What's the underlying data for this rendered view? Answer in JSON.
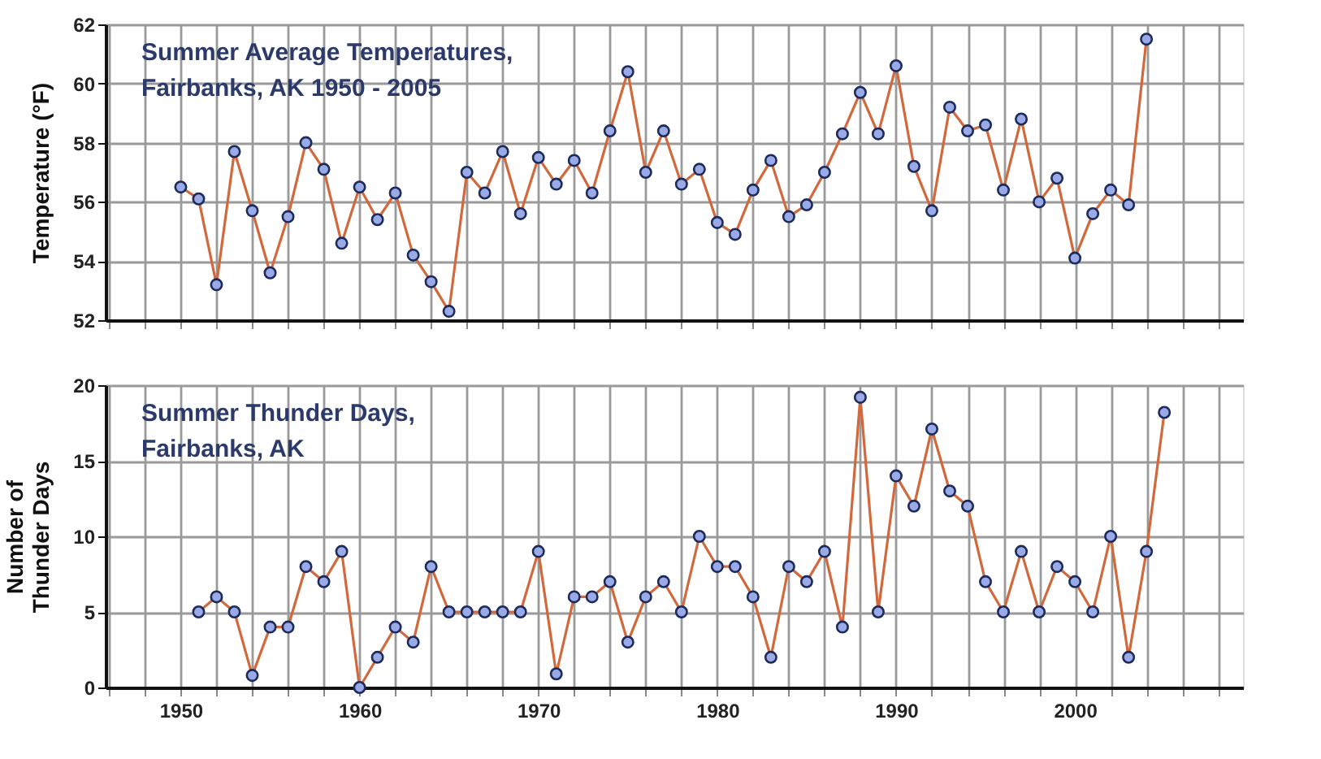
{
  "chart_data": [
    {
      "type": "line",
      "title": "Summer Average Temperatures,\nFairbanks, AK 1950 - 2005",
      "ylabel": "Temperature (°F)",
      "x": [
        1950,
        1951,
        1952,
        1953,
        1954,
        1955,
        1956,
        1957,
        1958,
        1959,
        1960,
        1961,
        1962,
        1963,
        1964,
        1965,
        1966,
        1967,
        1968,
        1969,
        1970,
        1971,
        1972,
        1973,
        1974,
        1975,
        1976,
        1977,
        1978,
        1979,
        1980,
        1981,
        1982,
        1983,
        1984,
        1985,
        1986,
        1987,
        1988,
        1989,
        1990,
        1991,
        1992,
        1993,
        1994,
        1995,
        1996,
        1997,
        1998,
        1999,
        2000,
        2001,
        2002,
        2003,
        2004
      ],
      "series": [
        {
          "color": "#d2693c",
          "values": [
            56.5,
            56.1,
            53.2,
            57.7,
            55.7,
            53.6,
            55.5,
            58.0,
            57.1,
            54.6,
            56.5,
            55.4,
            56.3,
            54.2,
            53.3,
            52.3,
            57.0,
            56.3,
            57.7,
            55.6,
            57.5,
            56.6,
            57.4,
            56.3,
            58.4,
            60.4,
            57.0,
            58.4,
            56.6,
            57.1,
            55.3,
            54.9,
            56.4,
            57.4,
            55.5,
            55.9,
            57.0,
            58.3,
            59.7,
            58.3,
            60.6,
            57.2,
            55.7,
            59.2,
            58.4,
            58.6,
            56.4,
            58.8,
            56.0,
            56.8,
            54.1,
            55.6,
            56.4,
            55.9,
            61.5
          ]
        }
      ],
      "xlim": [
        1945.8,
        2009.4
      ],
      "xticks": [
        {
          "value": 1946,
          "label": null
        },
        {
          "value": 1948,
          "label": null
        },
        {
          "value": 1950,
          "label": null
        },
        {
          "value": 1952,
          "label": null
        },
        {
          "value": 1954,
          "label": null
        },
        {
          "value": 1956,
          "label": null
        },
        {
          "value": 1958,
          "label": null
        },
        {
          "value": 1960,
          "label": null
        },
        {
          "value": 1962,
          "label": null
        },
        {
          "value": 1964,
          "label": null
        },
        {
          "value": 1966,
          "label": null
        },
        {
          "value": 1968,
          "label": null
        },
        {
          "value": 1970,
          "label": null
        },
        {
          "value": 1972,
          "label": null
        },
        {
          "value": 1974,
          "label": null
        },
        {
          "value": 1976,
          "label": null
        },
        {
          "value": 1978,
          "label": null
        },
        {
          "value": 1980,
          "label": null
        },
        {
          "value": 1982,
          "label": null
        },
        {
          "value": 1984,
          "label": null
        },
        {
          "value": 1986,
          "label": null
        },
        {
          "value": 1988,
          "label": null
        },
        {
          "value": 1990,
          "label": null
        },
        {
          "value": 1992,
          "label": null
        },
        {
          "value": 1994,
          "label": null
        },
        {
          "value": 1996,
          "label": null
        },
        {
          "value": 1998,
          "label": null
        },
        {
          "value": 2000,
          "label": null
        },
        {
          "value": 2002,
          "label": null
        },
        {
          "value": 2004,
          "label": null
        },
        {
          "value": 2006,
          "label": null
        },
        {
          "value": 2008,
          "label": null
        }
      ],
      "ylim": [
        52,
        62
      ],
      "yticks": [
        52,
        54,
        56,
        58,
        60,
        62
      ],
      "grid": true,
      "marker": "circle",
      "line_style": "solid",
      "tick_labels": "y"
    },
    {
      "type": "line",
      "title": "Summer Thunder Days,\nFairbanks, AK",
      "ylabel": "Number of\nThunder Days",
      "x": [
        1951,
        1952,
        1953,
        1954,
        1955,
        1956,
        1957,
        1958,
        1959,
        1960,
        1961,
        1962,
        1963,
        1964,
        1965,
        1966,
        1967,
        1968,
        1969,
        1970,
        1971,
        1972,
        1973,
        1974,
        1975,
        1976,
        1977,
        1978,
        1979,
        1980,
        1981,
        1982,
        1983,
        1984,
        1985,
        1986,
        1987,
        1988,
        1989,
        1990,
        1991,
        1992,
        1993,
        1994,
        1995,
        1996,
        1997,
        1998,
        1999,
        2000,
        2001,
        2002,
        2003,
        2004,
        2005
      ],
      "series": [
        {
          "color": "#d2693c",
          "values": [
            5,
            6,
            5,
            0.8,
            4,
            4,
            8,
            7,
            9,
            0,
            2,
            4,
            3,
            8,
            5,
            5,
            5,
            5,
            5,
            9,
            0.9,
            6,
            6,
            7,
            3,
            6,
            7,
            5,
            10,
            8,
            8,
            6,
            2,
            8,
            7,
            9,
            4,
            19.2,
            5,
            14,
            12,
            17.1,
            13,
            12,
            7,
            5,
            9,
            5,
            8,
            7,
            5,
            10,
            2,
            9,
            18.2
          ]
        }
      ],
      "xlim": [
        1945.8,
        2009.4
      ],
      "xticks": [
        {
          "value": 1946,
          "label": null
        },
        {
          "value": 1948,
          "label": null
        },
        1950,
        {
          "value": 1952,
          "label": null
        },
        {
          "value": 1954,
          "label": null
        },
        {
          "value": 1956,
          "label": null
        },
        {
          "value": 1958,
          "label": null
        },
        1960,
        {
          "value": 1962,
          "label": null
        },
        {
          "value": 1964,
          "label": null
        },
        {
          "value": 1966,
          "label": null
        },
        {
          "value": 1968,
          "label": null
        },
        1970,
        {
          "value": 1972,
          "label": null
        },
        {
          "value": 1974,
          "label": null
        },
        {
          "value": 1976,
          "label": null
        },
        {
          "value": 1978,
          "label": null
        },
        1980,
        {
          "value": 1982,
          "label": null
        },
        {
          "value": 1984,
          "label": null
        },
        {
          "value": 1986,
          "label": null
        },
        {
          "value": 1988,
          "label": null
        },
        1990,
        {
          "value": 1992,
          "label": null
        },
        {
          "value": 1994,
          "label": null
        },
        {
          "value": 1996,
          "label": null
        },
        {
          "value": 1998,
          "label": null
        },
        2000,
        {
          "value": 2002,
          "label": null
        },
        {
          "value": 2004,
          "label": null
        },
        {
          "value": 2006,
          "label": null
        },
        {
          "value": 2008,
          "label": null
        }
      ],
      "ylim": [
        0,
        20
      ],
      "yticks": [
        0,
        5,
        10,
        15,
        20
      ],
      "grid": true,
      "marker": "circle",
      "line_style": "solid"
    }
  ]
}
